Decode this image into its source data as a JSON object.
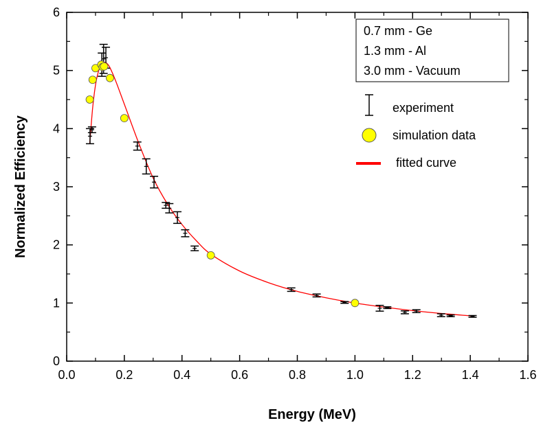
{
  "chart_data": {
    "type": "scatter",
    "xlabel": "Energy (MeV)",
    "ylabel": "Normalized Efficiency",
    "xlim": [
      0.0,
      1.6
    ],
    "ylim": [
      0,
      6
    ],
    "xticks": [
      "0.0",
      "0.2",
      "0.4",
      "0.6",
      "0.8",
      "1.0",
      "1.2",
      "1.4",
      "1.6"
    ],
    "yticks": [
      "0",
      "1",
      "2",
      "3",
      "4",
      "5",
      "6"
    ],
    "grid": false,
    "legend_position": "top-right",
    "geometry_box": [
      "0.7 mm - Ge",
      "1.3 mm - Al",
      "3.0 mm - Vacuum"
    ],
    "legend": [
      {
        "label": "experiment",
        "marker": "errorbar"
      },
      {
        "label": "simulation data",
        "marker": "circle"
      },
      {
        "label": "fitted curve",
        "marker": "line"
      }
    ],
    "colors": {
      "experiment": "#000000",
      "simulation_fill": "#ffff00",
      "simulation_stroke": "#555555",
      "fit": "#ff0000"
    },
    "series": [
      {
        "name": "experiment",
        "points": [
          {
            "x": 0.081,
            "y": 3.87,
            "err": 0.13
          },
          {
            "x": 0.088,
            "y": 3.98,
            "err": 0.05
          },
          {
            "x": 0.122,
            "y": 5.1,
            "err": 0.2
          },
          {
            "x": 0.128,
            "y": 5.2,
            "err": 0.25
          },
          {
            "x": 0.136,
            "y": 5.22,
            "err": 0.18
          },
          {
            "x": 0.245,
            "y": 3.7,
            "err": 0.07
          },
          {
            "x": 0.276,
            "y": 3.35,
            "err": 0.13
          },
          {
            "x": 0.303,
            "y": 3.08,
            "err": 0.1
          },
          {
            "x": 0.344,
            "y": 2.68,
            "err": 0.05
          },
          {
            "x": 0.356,
            "y": 2.63,
            "err": 0.08
          },
          {
            "x": 0.384,
            "y": 2.47,
            "err": 0.1
          },
          {
            "x": 0.411,
            "y": 2.2,
            "err": 0.06
          },
          {
            "x": 0.444,
            "y": 1.94,
            "err": 0.04
          },
          {
            "x": 0.779,
            "y": 1.23,
            "err": 0.03
          },
          {
            "x": 0.867,
            "y": 1.13,
            "err": 0.025
          },
          {
            "x": 0.964,
            "y": 1.01,
            "err": 0.015
          },
          {
            "x": 1.086,
            "y": 0.91,
            "err": 0.05
          },
          {
            "x": 1.112,
            "y": 0.92,
            "err": 0.015
          },
          {
            "x": 1.173,
            "y": 0.84,
            "err": 0.025
          },
          {
            "x": 1.213,
            "y": 0.86,
            "err": 0.025
          },
          {
            "x": 1.299,
            "y": 0.79,
            "err": 0.025
          },
          {
            "x": 1.332,
            "y": 0.78,
            "err": 0.015
          },
          {
            "x": 1.408,
            "y": 0.77,
            "err": 0.015
          }
        ]
      },
      {
        "name": "simulation data",
        "points": [
          {
            "x": 0.08,
            "y": 4.5
          },
          {
            "x": 0.09,
            "y": 4.84
          },
          {
            "x": 0.1,
            "y": 5.04
          },
          {
            "x": 0.12,
            "y": 5.1
          },
          {
            "x": 0.125,
            "y": 5.06
          },
          {
            "x": 0.13,
            "y": 5.07
          },
          {
            "x": 0.15,
            "y": 4.87
          },
          {
            "x": 0.2,
            "y": 4.18
          },
          {
            "x": 0.5,
            "y": 1.82
          },
          {
            "x": 1.0,
            "y": 1.0
          }
        ]
      },
      {
        "name": "fitted curve",
        "points": [
          {
            "x": 0.08,
            "y": 3.75
          },
          {
            "x": 0.09,
            "y": 4.35
          },
          {
            "x": 0.1,
            "y": 4.75
          },
          {
            "x": 0.11,
            "y": 4.98
          },
          {
            "x": 0.12,
            "y": 5.1
          },
          {
            "x": 0.13,
            "y": 5.14
          },
          {
            "x": 0.14,
            "y": 5.12
          },
          {
            "x": 0.15,
            "y": 5.05
          },
          {
            "x": 0.17,
            "y": 4.82
          },
          {
            "x": 0.2,
            "y": 4.42
          },
          {
            "x": 0.25,
            "y": 3.75
          },
          {
            "x": 0.3,
            "y": 3.15
          },
          {
            "x": 0.35,
            "y": 2.7
          },
          {
            "x": 0.4,
            "y": 2.35
          },
          {
            "x": 0.45,
            "y": 2.07
          },
          {
            "x": 0.5,
            "y": 1.84
          },
          {
            "x": 0.6,
            "y": 1.55
          },
          {
            "x": 0.7,
            "y": 1.35
          },
          {
            "x": 0.8,
            "y": 1.2
          },
          {
            "x": 0.9,
            "y": 1.09
          },
          {
            "x": 1.0,
            "y": 1.0
          },
          {
            "x": 1.1,
            "y": 0.93
          },
          {
            "x": 1.2,
            "y": 0.87
          },
          {
            "x": 1.3,
            "y": 0.82
          },
          {
            "x": 1.4,
            "y": 0.78
          },
          {
            "x": 1.41,
            "y": 0.775
          }
        ]
      }
    ]
  }
}
